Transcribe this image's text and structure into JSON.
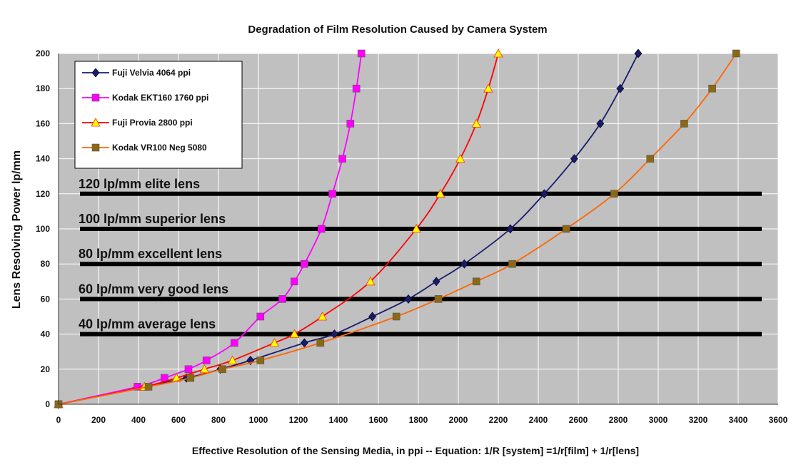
{
  "chart_data": {
    "type": "line",
    "title": "Degradation of Film Resolution Caused by Camera System",
    "xlabel": "Effective Resolution of the Sensing Media, in ppi -- Equation: 1/R [system] =1/r[film] + 1/r[lens]",
    "ylabel": "Lens Resolving Power lp/mm",
    "xlim": [
      0,
      3600
    ],
    "ylim": [
      0,
      200
    ],
    "x_ticks": [
      0,
      200,
      400,
      600,
      800,
      1000,
      1200,
      1400,
      1600,
      1800,
      2000,
      2200,
      2400,
      2600,
      2800,
      3000,
      3200,
      3400,
      3600
    ],
    "y_ticks": [
      0,
      20,
      40,
      60,
      80,
      100,
      120,
      140,
      160,
      180,
      200
    ],
    "grid": true,
    "background": "#c0c0c0",
    "legend_position": "top-left",
    "series": [
      {
        "name": "Fuji Velvia 4064 ppi",
        "color": "#1a1a6e",
        "marker": "diamond",
        "marker_color": "#1a1a6e",
        "points": [
          [
            0,
            0
          ],
          [
            640,
            15
          ],
          [
            810,
            20
          ],
          [
            960,
            25
          ],
          [
            1230,
            35
          ],
          [
            1380,
            40
          ],
          [
            1570,
            50
          ],
          [
            1750,
            60
          ],
          [
            1890,
            70
          ],
          [
            2030,
            80
          ],
          [
            2260,
            100
          ],
          [
            2430,
            120
          ],
          [
            2580,
            140
          ],
          [
            2710,
            160
          ],
          [
            2810,
            180
          ],
          [
            2900,
            200
          ]
        ]
      },
      {
        "name": "Kodak EKT160 1760 ppi",
        "color": "#ff00ff",
        "marker": "square",
        "marker_color": "#ff00ff",
        "points": [
          [
            0,
            0
          ],
          [
            395,
            10
          ],
          [
            530,
            15
          ],
          [
            650,
            20
          ],
          [
            740,
            25
          ],
          [
            880,
            35
          ],
          [
            1010,
            50
          ],
          [
            1120,
            60
          ],
          [
            1180,
            70
          ],
          [
            1230,
            80
          ],
          [
            1315,
            100
          ],
          [
            1370,
            120
          ],
          [
            1420,
            140
          ],
          [
            1460,
            160
          ],
          [
            1490,
            180
          ],
          [
            1515,
            200
          ]
        ]
      },
      {
        "name": "Fuji Provia 2800 ppi",
        "color": "#ff0000",
        "marker": "triangle",
        "marker_color": "#ffff00",
        "points": [
          [
            0,
            0
          ],
          [
            430,
            10
          ],
          [
            590,
            15
          ],
          [
            730,
            20
          ],
          [
            870,
            25
          ],
          [
            1080,
            35
          ],
          [
            1180,
            40
          ],
          [
            1320,
            50
          ],
          [
            1560,
            70
          ],
          [
            1790,
            100
          ],
          [
            1910,
            120
          ],
          [
            2010,
            140
          ],
          [
            2090,
            160
          ],
          [
            2150,
            180
          ],
          [
            2200,
            200
          ]
        ]
      },
      {
        "name": "Kodak VR100 Neg 5080",
        "color": "#ff6600",
        "marker": "square",
        "marker_color": "#8b6914",
        "points": [
          [
            0,
            0
          ],
          [
            450,
            10
          ],
          [
            660,
            15
          ],
          [
            820,
            20
          ],
          [
            1010,
            25
          ],
          [
            1310,
            35
          ],
          [
            1690,
            50
          ],
          [
            1900,
            60
          ],
          [
            2090,
            70
          ],
          [
            2270,
            80
          ],
          [
            2540,
            100
          ],
          [
            2780,
            120
          ],
          [
            2960,
            140
          ],
          [
            3130,
            160
          ],
          [
            3270,
            180
          ],
          [
            3390,
            200
          ]
        ]
      }
    ],
    "reference_lines": [
      {
        "y": 120,
        "label": "120 lp/mm elite lens"
      },
      {
        "y": 100,
        "label": "100 lp/mm superior lens"
      },
      {
        "y": 80,
        "label": "80 lp/mm excellent lens"
      },
      {
        "y": 60,
        "label": "60 lp/mm very good lens"
      },
      {
        "y": 40,
        "label": "40 lp/mm average lens"
      }
    ]
  }
}
